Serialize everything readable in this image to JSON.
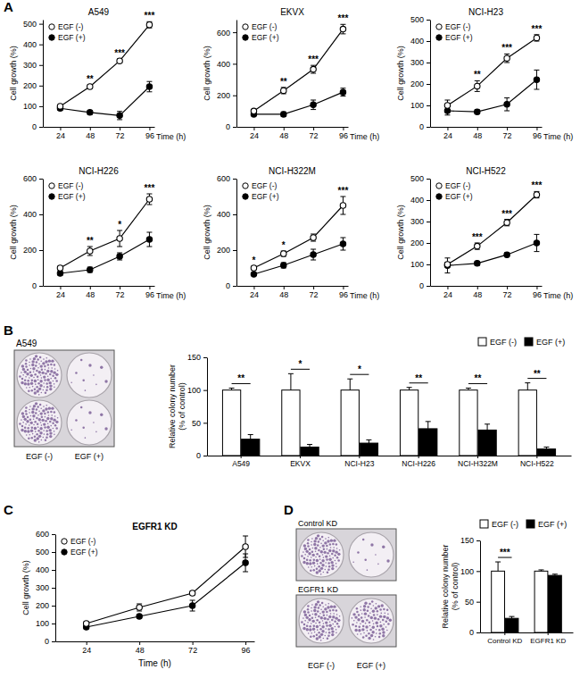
{
  "panels": [
    "A",
    "B",
    "C",
    "D"
  ],
  "images": [
    {
      "title": "A549",
      "labels": [
        "EGF (-)",
        "EGF (+)"
      ]
    },
    {
      "row_labels": [
        "Control KD",
        "EGFR1 KD"
      ],
      "labels": [
        "EGF (-)",
        "EGF (+)"
      ]
    }
  ],
  "chart_data": [
    {
      "type": "line",
      "title": "A549",
      "x": [
        24,
        48,
        72,
        96
      ],
      "xlim": [
        10,
        100
      ],
      "xticks": [
        24,
        48,
        72,
        96
      ],
      "x_label": "Time (h)",
      "ylim": [
        0,
        520
      ],
      "yticks": [
        0,
        100,
        200,
        300,
        400,
        500
      ],
      "y_label": "Cell growth (%)",
      "legend": "upper left",
      "series": [
        {
          "name": "EGF (-)",
          "color": "#000000",
          "marker": "open_circle",
          "values": [
            100,
            195,
            320,
            495
          ],
          "errors": [
            5,
            8,
            10,
            15
          ]
        },
        {
          "name": "EGF (+)",
          "color": "#000000",
          "marker": "circle",
          "values": [
            90,
            70,
            55,
            195
          ],
          "errors": [
            10,
            10,
            20,
            25
          ]
        }
      ],
      "annotations": [
        null,
        "**",
        "***",
        "***"
      ]
    },
    {
      "type": "line",
      "title": "EKVX",
      "x": [
        24,
        48,
        72,
        96
      ],
      "xlim": [
        10,
        100
      ],
      "xticks": [
        24,
        48,
        72,
        96
      ],
      "x_label": "Time (h)",
      "ylim": [
        0,
        680
      ],
      "yticks": [
        0,
        200,
        400,
        600
      ],
      "y_label": "Cell growth (%)",
      "legend": "upper left",
      "series": [
        {
          "name": "EGF (-)",
          "color": "#000000",
          "marker": "open_circle",
          "values": [
            100,
            230,
            365,
            620
          ],
          "errors": [
            10,
            20,
            25,
            30
          ]
        },
        {
          "name": "EGF (+)",
          "color": "#000000",
          "marker": "circle",
          "values": [
            80,
            80,
            140,
            220
          ],
          "errors": [
            10,
            15,
            30,
            25
          ]
        }
      ],
      "annotations": [
        null,
        "**",
        "***",
        "***"
      ]
    },
    {
      "type": "line",
      "title": "NCI-H23",
      "x": [
        24,
        48,
        72,
        96
      ],
      "xlim": [
        10,
        100
      ],
      "xticks": [
        24,
        48,
        72,
        96
      ],
      "x_label": "Time (h)",
      "ylim": [
        0,
        500
      ],
      "yticks": [
        0,
        100,
        200,
        300,
        400,
        500
      ],
      "y_label": "Cell growth (%)",
      "legend": "upper left",
      "series": [
        {
          "name": "EGF (-)",
          "color": "#000000",
          "marker": "open_circle",
          "values": [
            100,
            190,
            320,
            415
          ],
          "errors": [
            25,
            25,
            20,
            15
          ]
        },
        {
          "name": "EGF (+)",
          "color": "#000000",
          "marker": "circle",
          "values": [
            75,
            70,
            105,
            220
          ],
          "errors": [
            20,
            10,
            30,
            45
          ]
        }
      ],
      "annotations": [
        null,
        "**",
        "***",
        "***"
      ]
    },
    {
      "type": "line",
      "title": "NCI-H226",
      "x": [
        24,
        48,
        72,
        96
      ],
      "xlim": [
        10,
        100
      ],
      "xticks": [
        24,
        48,
        72,
        96
      ],
      "x_label": "Time (h)",
      "ylim": [
        0,
        600
      ],
      "yticks": [
        0,
        200,
        400,
        600
      ],
      "y_label": "Cell growth (%)",
      "legend": "upper left",
      "series": [
        {
          "name": "EGF (-)",
          "color": "#000000",
          "marker": "open_circle",
          "values": [
            100,
            195,
            265,
            485
          ],
          "errors": [
            10,
            25,
            45,
            30
          ]
        },
        {
          "name": "EGF (+)",
          "color": "#000000",
          "marker": "circle",
          "values": [
            70,
            90,
            165,
            260
          ],
          "errors": [
            10,
            15,
            20,
            40
          ]
        }
      ],
      "annotations": [
        null,
        "**",
        "*",
        "***"
      ]
    },
    {
      "type": "line",
      "title": "NCI-H322M",
      "x": [
        24,
        48,
        72,
        96
      ],
      "xlim": [
        10,
        100
      ],
      "xticks": [
        24,
        48,
        72,
        96
      ],
      "x_label": "Time (h)",
      "ylim": [
        0,
        600
      ],
      "yticks": [
        0,
        200,
        400,
        600
      ],
      "y_label": "Cell growth (%)",
      "legend": "upper left",
      "series": [
        {
          "name": "EGF (-)",
          "color": "#000000",
          "marker": "open_circle",
          "values": [
            100,
            180,
            270,
            450
          ],
          "errors": [
            10,
            15,
            20,
            50
          ]
        },
        {
          "name": "EGF (+)",
          "color": "#000000",
          "marker": "circle",
          "values": [
            65,
            115,
            175,
            235
          ],
          "errors": [
            5,
            15,
            30,
            35
          ]
        }
      ],
      "annotations": [
        "*",
        "*",
        null,
        "***"
      ]
    },
    {
      "type": "line",
      "title": "NCI-H522",
      "x": [
        24,
        48,
        72,
        96
      ],
      "xlim": [
        10,
        100
      ],
      "xticks": [
        24,
        48,
        72,
        96
      ],
      "x_label": "Time (h)",
      "ylim": [
        0,
        500
      ],
      "yticks": [
        0,
        100,
        200,
        300,
        400,
        500
      ],
      "y_label": "Cell growth (%)",
      "legend": "upper left",
      "series": [
        {
          "name": "EGF (-)",
          "color": "#000000",
          "marker": "open_circle",
          "values": [
            100,
            185,
            295,
            425
          ],
          "errors": [
            10,
            15,
            15,
            15
          ]
        },
        {
          "name": "EGF (+)",
          "color": "#000000",
          "marker": "circle",
          "values": [
            95,
            105,
            145,
            200
          ],
          "errors": [
            35,
            10,
            10,
            40
          ]
        }
      ],
      "annotations": [
        null,
        "***",
        "***",
        "***"
      ]
    },
    {
      "type": "bar",
      "categories": [
        "A549",
        "EKVX",
        "NCI-H23",
        "NCI-H226",
        "NCI-H322M",
        "NCI-H522"
      ],
      "ylim": [
        0,
        150
      ],
      "yticks": [
        0,
        50,
        100,
        150
      ],
      "y_label": [
        "Relative colony number",
        "(% of control)"
      ],
      "legend": "upper right",
      "series": [
        {
          "name": "EGF (-)",
          "color": "#ffffff",
          "values": [
            100,
            100,
            100,
            100,
            100,
            100
          ],
          "errors": [
            3,
            25,
            17,
            4,
            3,
            11
          ]
        },
        {
          "name": "EGF (+)",
          "color": "#000000",
          "values": [
            25,
            13,
            19,
            41,
            39,
            10
          ],
          "errors": [
            7,
            4,
            5,
            11,
            9,
            3
          ]
        }
      ],
      "annotations": [
        "**",
        "*",
        "*",
        "**",
        "**",
        "**"
      ]
    },
    {
      "type": "line",
      "title": "EGFR1 KD",
      "x": [
        24,
        48,
        72,
        96
      ],
      "xlim": [
        10,
        100
      ],
      "xticks": [
        24,
        48,
        72,
        96
      ],
      "x_label": "Time (h)",
      "ylim": [
        0,
        600
      ],
      "yticks": [
        0,
        100,
        200,
        300,
        400,
        500,
        600
      ],
      "y_label": "Cell growth (%)",
      "legend": "upper left",
      "series": [
        {
          "name": "EGF (-)",
          "color": "#000000",
          "marker": "open_circle",
          "values": [
            100,
            190,
            270,
            530
          ],
          "errors": [
            10,
            20,
            10,
            60
          ]
        },
        {
          "name": "EGF (+)",
          "color": "#000000",
          "marker": "circle",
          "values": [
            80,
            140,
            200,
            440
          ],
          "errors": [
            10,
            10,
            30,
            50
          ]
        }
      ]
    },
    {
      "type": "bar",
      "categories": [
        "Control KD",
        "EGFR1 KD"
      ],
      "ylim": [
        0,
        150
      ],
      "yticks": [
        0,
        50,
        100,
        150
      ],
      "y_label": [
        "Relative colony number",
        "(% of control)"
      ],
      "legend": "upper right",
      "series": [
        {
          "name": "EGF (-)",
          "color": "#ffffff",
          "values": [
            100,
            100
          ],
          "errors": [
            15,
            2
          ]
        },
        {
          "name": "EGF (+)",
          "color": "#000000",
          "values": [
            23,
            93
          ],
          "errors": [
            3,
            2
          ]
        }
      ],
      "annotations": [
        "***",
        null
      ]
    }
  ]
}
